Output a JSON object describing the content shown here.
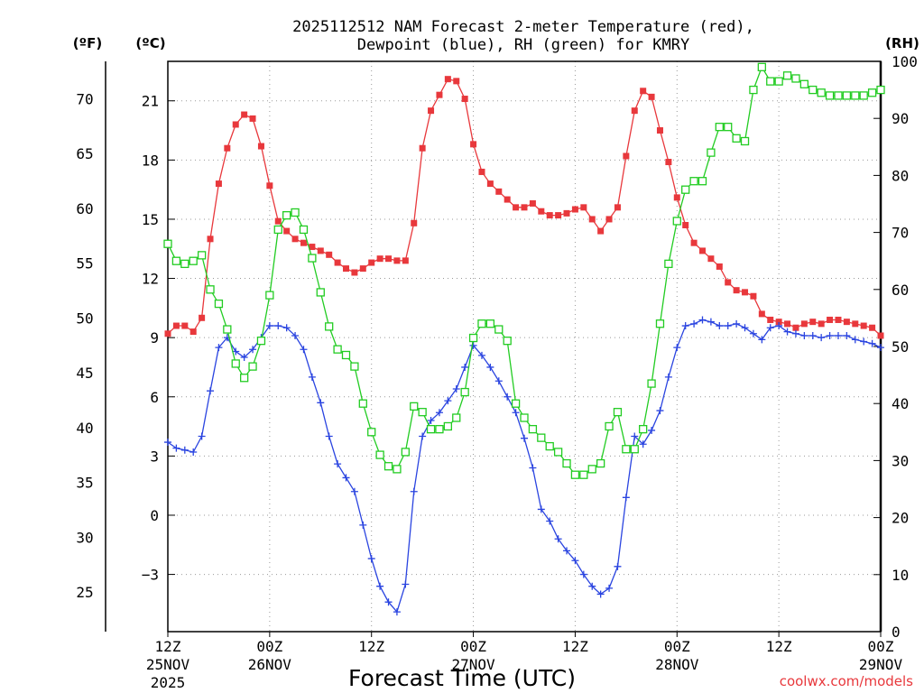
{
  "chart_data": {
    "type": "line",
    "title_line1": "2025112512 NAM Forecast 2-meter Temperature (red),",
    "title_line2": "Dewpoint (blue), RH (green) for KMRY",
    "xlabel": "Forecast Time (UTC)",
    "credit": "coolwx.com/models",
    "unit_f": "(ºF)",
    "unit_c": "(ºC)",
    "unit_rh": "(RH)",
    "x_range_hours": [
      0,
      84
    ],
    "x_ticks": [
      {
        "h": 0,
        "line1": "12Z",
        "line2": "25NOV",
        "line3": "2025"
      },
      {
        "h": 12,
        "line1": "00Z",
        "line2": "26NOV",
        "line3": ""
      },
      {
        "h": 24,
        "line1": "12Z",
        "line2": "",
        "line3": ""
      },
      {
        "h": 36,
        "line1": "00Z",
        "line2": "27NOV",
        "line3": ""
      },
      {
        "h": 48,
        "line1": "12Z",
        "line2": "",
        "line3": ""
      },
      {
        "h": 60,
        "line1": "00Z",
        "line2": "28NOV",
        "line3": ""
      },
      {
        "h": 72,
        "line1": "12Z",
        "line2": "",
        "line3": ""
      },
      {
        "h": 84,
        "line1": "00Z",
        "line2": "29NOV",
        "line3": ""
      }
    ],
    "c_range": [
      -5.9,
      23.0
    ],
    "c_ticks": [
      "-3",
      "0",
      "3",
      "6",
      "9",
      "12",
      "15",
      "18",
      "21"
    ],
    "f_ticks": [
      "25",
      "30",
      "35",
      "40",
      "45",
      "50",
      "55",
      "60",
      "65",
      "70"
    ],
    "rh_range": [
      0,
      100
    ],
    "rh_ticks": [
      "0",
      "10",
      "20",
      "30",
      "40",
      "50",
      "60",
      "70",
      "80",
      "90",
      "100"
    ],
    "grid": true,
    "colors": {
      "temperature": "#e8383c",
      "dewpoint": "#2a44e0",
      "rh": "#22cc22"
    },
    "series": [
      {
        "key": "temperature",
        "unit": "C",
        "values": [
          9.2,
          9.6,
          9.6,
          9.3,
          10.0,
          14.0,
          16.8,
          18.6,
          19.8,
          20.3,
          20.1,
          18.7,
          16.7,
          14.9,
          14.4,
          14.0,
          13.8,
          13.6,
          13.4,
          13.2,
          12.8,
          12.5,
          12.3,
          12.5,
          12.8,
          13.0,
          13.0,
          12.9,
          12.9,
          14.8,
          18.6,
          20.5,
          21.3,
          22.1,
          22.0,
          21.1,
          18.8,
          17.4,
          16.8,
          16.4,
          16.0,
          15.6,
          15.6,
          15.8,
          15.4,
          15.2,
          15.2,
          15.3,
          15.5,
          15.6,
          15.0,
          14.4,
          15.0,
          15.6,
          18.2,
          20.5,
          21.5,
          21.2,
          19.5,
          17.9,
          16.1,
          14.7,
          13.8,
          13.4,
          13.0,
          12.6,
          11.8,
          11.4,
          11.3,
          11.1,
          10.2,
          9.9,
          9.8,
          9.7,
          9.5,
          9.7,
          9.8,
          9.7,
          9.9,
          9.9,
          9.8,
          9.7,
          9.6,
          9.5,
          9.1
        ]
      },
      {
        "key": "dewpoint",
        "unit": "C",
        "values": [
          3.7,
          3.4,
          3.3,
          3.2,
          4.0,
          6.3,
          8.5,
          9.0,
          8.3,
          8.0,
          8.4,
          9.0,
          9.6,
          9.6,
          9.5,
          9.1,
          8.4,
          7.0,
          5.7,
          4.0,
          2.6,
          1.9,
          1.2,
          -0.5,
          -2.2,
          -3.6,
          -4.4,
          -4.9,
          -3.5,
          1.2,
          4.0,
          4.8,
          5.2,
          5.8,
          6.4,
          7.5,
          8.6,
          8.1,
          7.5,
          6.8,
          6.0,
          5.2,
          3.9,
          2.4,
          0.3,
          -0.3,
          -1.2,
          -1.8,
          -2.3,
          -3.0,
          -3.6,
          -4.0,
          -3.7,
          -2.6,
          0.9,
          4.0,
          3.6,
          4.3,
          5.3,
          7.0,
          8.5,
          9.6,
          9.7,
          9.9,
          9.8,
          9.6,
          9.6,
          9.7,
          9.5,
          9.2,
          8.9,
          9.5,
          9.6,
          9.3,
          9.2,
          9.1,
          9.1,
          9.0,
          9.1,
          9.1,
          9.1,
          8.9,
          8.8,
          8.7,
          8.5
        ]
      },
      {
        "key": "rh",
        "unit": "%",
        "values": [
          68,
          65,
          64.5,
          65,
          66,
          60,
          57.5,
          53,
          47,
          44.5,
          46.5,
          51,
          59,
          70.5,
          73,
          73.5,
          70.5,
          65.5,
          59.5,
          53.5,
          49.5,
          48.5,
          46.5,
          40,
          35,
          31,
          29,
          28.5,
          31.5,
          39.5,
          38.5,
          35.5,
          35.5,
          36,
          37.5,
          42,
          51.5,
          54,
          54,
          53,
          51,
          40,
          37.5,
          35.5,
          34,
          32.5,
          31.5,
          29.5,
          27.5,
          27.5,
          28.5,
          29.5,
          36,
          38.5,
          32,
          32,
          35.5,
          43.5,
          54,
          64.5,
          72,
          77.5,
          79,
          79,
          84,
          88.5,
          88.5,
          86.5,
          86,
          95,
          99,
          96.5,
          96.5,
          97.5,
          97,
          96,
          95,
          94.5,
          94,
          94,
          94,
          94,
          94,
          94.5,
          95
        ]
      }
    ]
  }
}
